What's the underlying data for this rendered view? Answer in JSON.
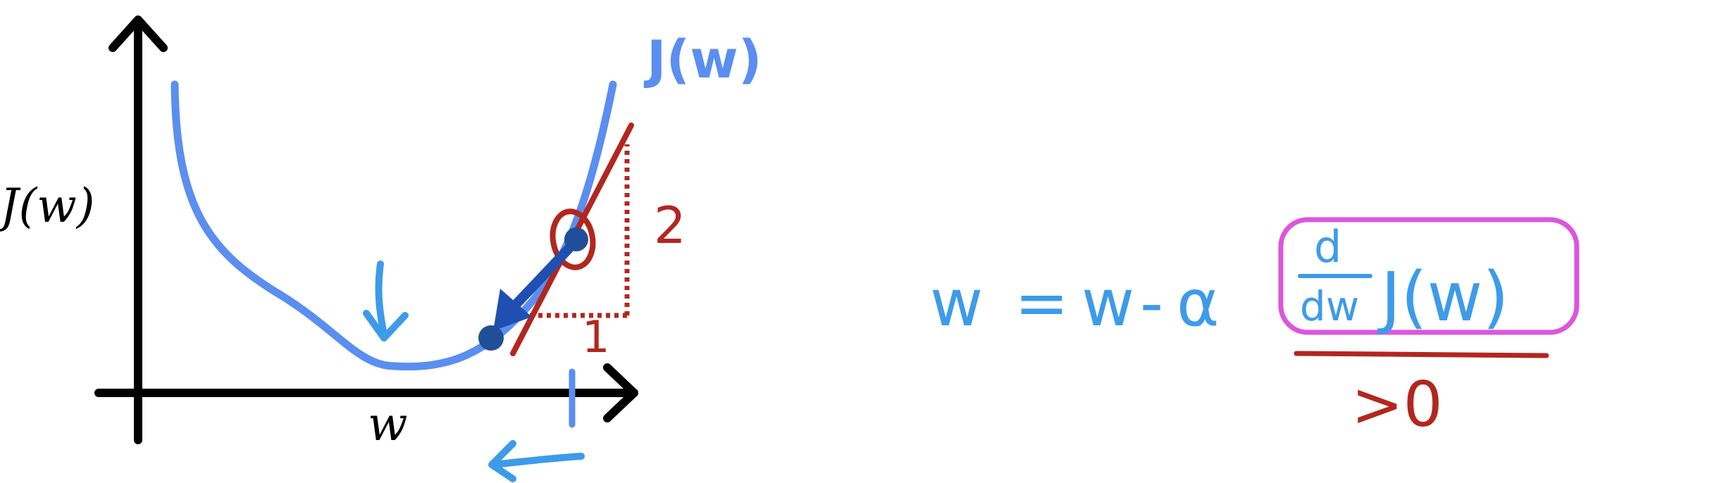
{
  "graph": {
    "y_axis_label": "J(w)",
    "x_axis_label": "w",
    "curve_label": "J(w)",
    "run_label": "1",
    "rise_label": "2"
  },
  "formula": {
    "lhs": "w",
    "equals": "=",
    "rhs_w": "w",
    "minus": "-",
    "alpha": "α",
    "derivative_numerator": "d",
    "derivative_denominator": "dw",
    "function": "J(w)",
    "annotation": ">0"
  },
  "colors": {
    "axis": "#000000",
    "curve": "#5b8ef0",
    "tangent": "#b3261e",
    "step_arrow": "#1f4fb0",
    "points": "#1f4f99",
    "annotation_blue": "#3d9be9",
    "highlight_box": "#dd55dd"
  }
}
